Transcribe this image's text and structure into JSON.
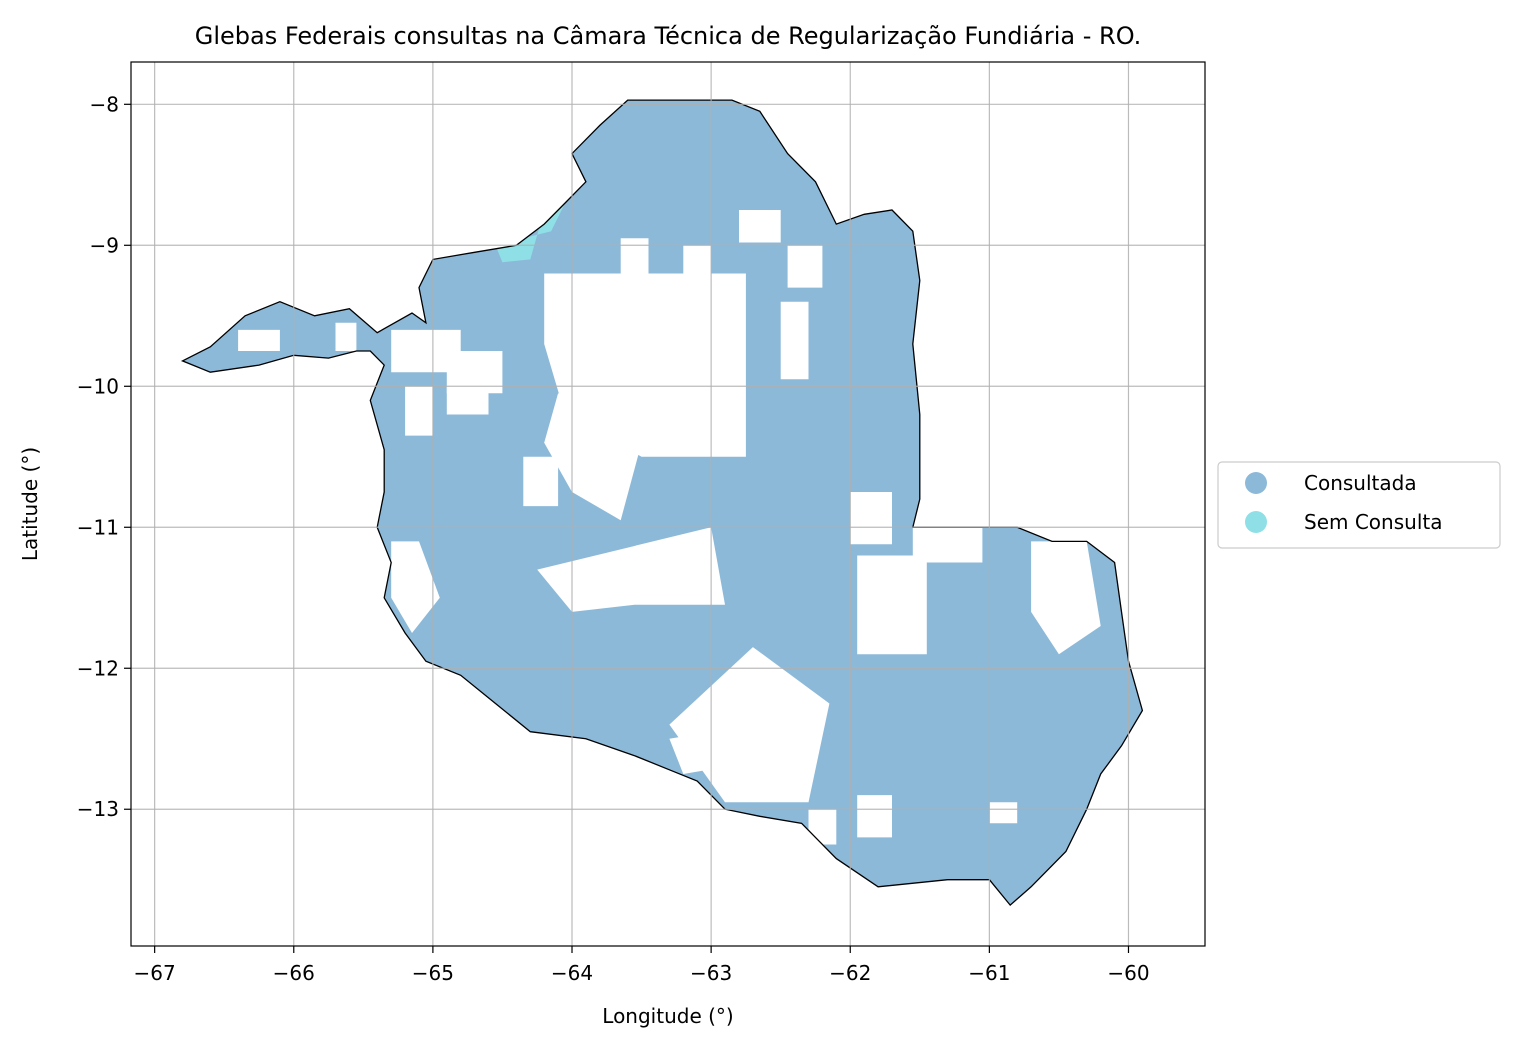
{
  "chart_data": {
    "type": "map",
    "title": "Glebas Federais consultas na Câmara Técnica de Regularização Fundiária - RO.",
    "xlabel": "Longitude (°)",
    "ylabel": "Latitude (°)",
    "xlim": [
      -67.17,
      -59.45
    ],
    "ylim": [
      -13.97,
      -7.7
    ],
    "xticks": [
      -67,
      -66,
      -65,
      -64,
      -63,
      -62,
      -61,
      -60
    ],
    "yticks": [
      -8,
      -9,
      -10,
      -11,
      -12,
      -13
    ],
    "xtick_labels": [
      "−67",
      "−66",
      "−65",
      "−64",
      "−63",
      "−62",
      "−61",
      "−60"
    ],
    "ytick_labels": [
      "−8",
      "−9",
      "−10",
      "−11",
      "−12",
      "−13"
    ],
    "grid": true,
    "legend_position": "outside right",
    "legend": [
      {
        "label": "Consultada",
        "color": "#8db9d9"
      },
      {
        "label": "Sem Consulta",
        "color": "#8ee0e6"
      }
    ],
    "boundary_lonlat": [
      [
        -66.8,
        -9.82
      ],
      [
        -66.6,
        -9.72
      ],
      [
        -66.35,
        -9.5
      ],
      [
        -66.1,
        -9.4
      ],
      [
        -65.85,
        -9.5
      ],
      [
        -65.6,
        -9.45
      ],
      [
        -65.4,
        -9.62
      ],
      [
        -65.15,
        -9.48
      ],
      [
        -65.05,
        -9.55
      ],
      [
        -65.1,
        -9.3
      ],
      [
        -65.0,
        -9.1
      ],
      [
        -64.7,
        -9.05
      ],
      [
        -64.4,
        -9.0
      ],
      [
        -64.2,
        -8.85
      ],
      [
        -64.05,
        -8.7
      ],
      [
        -63.9,
        -8.55
      ],
      [
        -64.0,
        -8.35
      ],
      [
        -63.8,
        -8.15
      ],
      [
        -63.6,
        -7.97
      ],
      [
        -62.85,
        -7.97
      ],
      [
        -62.65,
        -8.05
      ],
      [
        -62.45,
        -8.35
      ],
      [
        -62.25,
        -8.55
      ],
      [
        -62.1,
        -8.85
      ],
      [
        -61.9,
        -8.78
      ],
      [
        -61.7,
        -8.75
      ],
      [
        -61.55,
        -8.9
      ],
      [
        -61.5,
        -9.25
      ],
      [
        -61.55,
        -9.7
      ],
      [
        -61.5,
        -10.2
      ],
      [
        -61.5,
        -10.8
      ],
      [
        -61.55,
        -11.0
      ],
      [
        -60.8,
        -11.0
      ],
      [
        -60.55,
        -11.1
      ],
      [
        -60.3,
        -11.1
      ],
      [
        -60.1,
        -11.25
      ],
      [
        -60.05,
        -11.6
      ],
      [
        -60.0,
        -11.95
      ],
      [
        -59.9,
        -12.3
      ],
      [
        -60.05,
        -12.55
      ],
      [
        -60.2,
        -12.75
      ],
      [
        -60.3,
        -13.0
      ],
      [
        -60.45,
        -13.3
      ],
      [
        -60.7,
        -13.55
      ],
      [
        -60.85,
        -13.68
      ],
      [
        -61.0,
        -13.5
      ],
      [
        -61.3,
        -13.5
      ],
      [
        -61.8,
        -13.55
      ],
      [
        -62.1,
        -13.35
      ],
      [
        -62.35,
        -13.1
      ],
      [
        -62.65,
        -13.05
      ],
      [
        -62.9,
        -13.0
      ],
      [
        -63.1,
        -12.8
      ],
      [
        -63.3,
        -12.72
      ],
      [
        -63.55,
        -12.62
      ],
      [
        -63.9,
        -12.5
      ],
      [
        -64.3,
        -12.45
      ],
      [
        -64.55,
        -12.25
      ],
      [
        -64.8,
        -12.05
      ],
      [
        -65.05,
        -11.95
      ],
      [
        -65.2,
        -11.75
      ],
      [
        -65.35,
        -11.5
      ],
      [
        -65.3,
        -11.25
      ],
      [
        -65.4,
        -11.0
      ],
      [
        -65.35,
        -10.75
      ],
      [
        -65.35,
        -10.45
      ],
      [
        -65.45,
        -10.1
      ],
      [
        -65.35,
        -9.85
      ],
      [
        -65.45,
        -9.75
      ],
      [
        -65.55,
        -9.75
      ],
      [
        -65.75,
        -9.8
      ],
      [
        -66.0,
        -9.78
      ],
      [
        -66.25,
        -9.85
      ],
      [
        -66.6,
        -9.9
      ],
      [
        -66.8,
        -9.82
      ]
    ],
    "unconsulted_areas_lonlat": [
      [
        [
          -63.65,
          -8.95
        ],
        [
          -63.45,
          -8.95
        ],
        [
          -63.45,
          -9.3
        ],
        [
          -63.65,
          -9.3
        ]
      ],
      [
        [
          -63.2,
          -9.0
        ],
        [
          -63.0,
          -9.0
        ],
        [
          -63.0,
          -9.25
        ],
        [
          -63.2,
          -9.25
        ]
      ],
      [
        [
          -62.8,
          -8.75
        ],
        [
          -62.5,
          -8.75
        ],
        [
          -62.5,
          -8.98
        ],
        [
          -62.8,
          -8.98
        ]
      ],
      [
        [
          -62.45,
          -9.0
        ],
        [
          -62.2,
          -9.0
        ],
        [
          -62.2,
          -9.3
        ],
        [
          -62.45,
          -9.3
        ]
      ],
      [
        [
          -64.2,
          -9.2
        ],
        [
          -62.75,
          -9.2
        ],
        [
          -62.75,
          -10.5
        ],
        [
          -63.5,
          -10.5
        ],
        [
          -64.05,
          -10.2
        ],
        [
          -64.2,
          -9.7
        ]
      ],
      [
        [
          -62.5,
          -9.4
        ],
        [
          -62.3,
          -9.4
        ],
        [
          -62.3,
          -9.95
        ],
        [
          -62.5,
          -9.95
        ]
      ],
      [
        [
          -65.3,
          -9.6
        ],
        [
          -64.8,
          -9.6
        ],
        [
          -64.8,
          -9.9
        ],
        [
          -65.3,
          -9.9
        ]
      ],
      [
        [
          -64.9,
          -9.75
        ],
        [
          -64.5,
          -9.75
        ],
        [
          -64.5,
          -10.05
        ],
        [
          -64.9,
          -10.05
        ]
      ],
      [
        [
          -65.2,
          -10.0
        ],
        [
          -65.0,
          -10.0
        ],
        [
          -65.0,
          -10.35
        ],
        [
          -65.2,
          -10.35
        ]
      ],
      [
        [
          -64.9,
          -10.0
        ],
        [
          -64.6,
          -10.0
        ],
        [
          -64.6,
          -10.2
        ],
        [
          -64.9,
          -10.2
        ]
      ],
      [
        [
          -64.1,
          -10.05
        ],
        [
          -63.5,
          -10.4
        ],
        [
          -63.65,
          -10.95
        ],
        [
          -64.0,
          -10.75
        ],
        [
          -64.2,
          -10.4
        ]
      ],
      [
        [
          -64.25,
          -11.3
        ],
        [
          -63.0,
          -11.0
        ],
        [
          -62.9,
          -11.55
        ],
        [
          -63.55,
          -11.55
        ],
        [
          -64.0,
          -11.6
        ]
      ],
      [
        [
          -65.3,
          -11.1
        ],
        [
          -65.1,
          -11.1
        ],
        [
          -64.95,
          -11.5
        ],
        [
          -65.15,
          -11.75
        ],
        [
          -65.3,
          -11.5
        ]
      ],
      [
        [
          -62.0,
          -10.75
        ],
        [
          -61.7,
          -10.75
        ],
        [
          -61.7,
          -11.12
        ],
        [
          -62.0,
          -11.12
        ]
      ],
      [
        [
          -61.95,
          -11.2
        ],
        [
          -61.45,
          -11.2
        ],
        [
          -61.45,
          -11.9
        ],
        [
          -61.95,
          -11.9
        ]
      ],
      [
        [
          -61.55,
          -11.0
        ],
        [
          -61.05,
          -11.0
        ],
        [
          -61.05,
          -11.25
        ],
        [
          -61.55,
          -11.25
        ]
      ],
      [
        [
          -62.7,
          -11.85
        ],
        [
          -62.15,
          -12.25
        ],
        [
          -62.3,
          -12.95
        ],
        [
          -62.9,
          -12.95
        ],
        [
          -63.3,
          -12.4
        ]
      ],
      [
        [
          -63.3,
          -12.5
        ],
        [
          -63.0,
          -12.45
        ],
        [
          -62.9,
          -12.7
        ],
        [
          -63.2,
          -12.75
        ]
      ],
      [
        [
          -60.7,
          -11.1
        ],
        [
          -60.3,
          -11.1
        ],
        [
          -60.2,
          -11.7
        ],
        [
          -60.5,
          -11.9
        ],
        [
          -60.7,
          -11.6
        ]
      ],
      [
        [
          -61.0,
          -12.95
        ],
        [
          -60.8,
          -12.95
        ],
        [
          -60.8,
          -13.1
        ],
        [
          -61.0,
          -13.1
        ]
      ],
      [
        [
          -61.95,
          -12.9
        ],
        [
          -61.7,
          -12.9
        ],
        [
          -61.7,
          -13.2
        ],
        [
          -61.95,
          -13.2
        ]
      ],
      [
        [
          -62.3,
          -13.0
        ],
        [
          -62.1,
          -13.0
        ],
        [
          -62.1,
          -13.25
        ],
        [
          -62.3,
          -13.25
        ]
      ],
      [
        [
          -64.35,
          -10.5
        ],
        [
          -64.1,
          -10.5
        ],
        [
          -64.1,
          -10.85
        ],
        [
          -64.35,
          -10.85
        ]
      ],
      [
        [
          -66.4,
          -9.6
        ],
        [
          -66.1,
          -9.6
        ],
        [
          -66.1,
          -9.75
        ],
        [
          -66.4,
          -9.75
        ]
      ],
      [
        [
          -65.7,
          -9.55
        ],
        [
          -65.55,
          -9.55
        ],
        [
          -65.55,
          -9.75
        ],
        [
          -65.7,
          -9.75
        ]
      ]
    ],
    "sem_consulta_areas_lonlat": [
      [
        [
          -64.55,
          -9.0
        ],
        [
          -64.15,
          -8.9
        ],
        [
          -64.05,
          -8.7
        ],
        [
          -64.2,
          -8.75
        ],
        [
          -64.3,
          -9.1
        ],
        [
          -64.5,
          -9.12
        ]
      ]
    ]
  }
}
